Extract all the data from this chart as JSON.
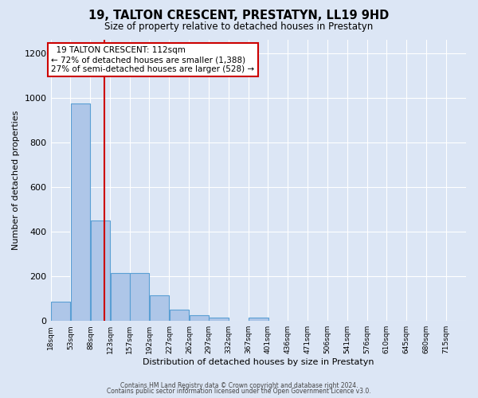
{
  "title": "19, TALTON CRESCENT, PRESTATYN, LL19 9HD",
  "subtitle": "Size of property relative to detached houses in Prestatyn",
  "xlabel": "Distribution of detached houses by size in Prestatyn",
  "ylabel": "Number of detached properties",
  "bin_labels": [
    "18sqm",
    "53sqm",
    "88sqm",
    "123sqm",
    "157sqm",
    "192sqm",
    "227sqm",
    "262sqm",
    "297sqm",
    "332sqm",
    "367sqm",
    "401sqm",
    "436sqm",
    "471sqm",
    "506sqm",
    "541sqm",
    "576sqm",
    "610sqm",
    "645sqm",
    "680sqm",
    "715sqm"
  ],
  "bar_heights": [
    85,
    975,
    450,
    215,
    215,
    115,
    50,
    25,
    15,
    0,
    15,
    0,
    0,
    0,
    0,
    0,
    0,
    0,
    0,
    0,
    0
  ],
  "bar_color": "#aec6e8",
  "bar_edge_color": "#5a9fd4",
  "property_line_x": 112,
  "bin_edges": [
    18,
    53,
    88,
    123,
    157,
    192,
    227,
    262,
    297,
    332,
    367,
    401,
    436,
    471,
    506,
    541,
    576,
    610,
    645,
    680,
    715
  ],
  "annotation_title": "19 TALTON CRESCENT: 112sqm",
  "annotation_line1": "← 72% of detached houses are smaller (1,388)",
  "annotation_line2": "27% of semi-detached houses are larger (528) →",
  "vline_color": "#cc0000",
  "annotation_box_color": "#cc0000",
  "ylim": [
    0,
    1260
  ],
  "yticks": [
    0,
    200,
    400,
    600,
    800,
    1000,
    1200
  ],
  "background_color": "#dce6f5",
  "footer_line1": "Contains HM Land Registry data © Crown copyright and database right 2024.",
  "footer_line2": "Contains public sector information licensed under the Open Government Licence v3.0."
}
